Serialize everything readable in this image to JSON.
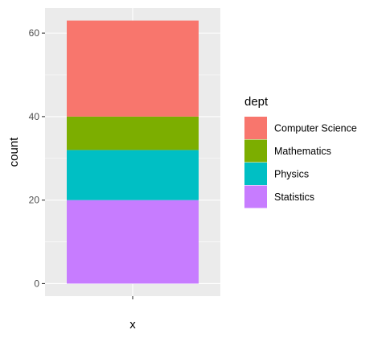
{
  "chart_data": {
    "type": "bar",
    "stacked": true,
    "categories": [
      ""
    ],
    "xlabel": "x",
    "ylabel": "count",
    "ylim": [
      -3,
      66
    ],
    "yticks": [
      0,
      20,
      40,
      60
    ],
    "grid": true,
    "legend_position": "right",
    "legend_title": "dept",
    "series": [
      {
        "name": "Computer Science",
        "values": [
          23
        ],
        "color": "#F8766D"
      },
      {
        "name": "Mathematics",
        "values": [
          8
        ],
        "color": "#7CAE00"
      },
      {
        "name": "Physics",
        "values": [
          12
        ],
        "color": "#00BFC4"
      },
      {
        "name": "Statistics",
        "values": [
          20
        ],
        "color": "#C77CFF"
      }
    ],
    "stack_order_bottom_to_top": [
      "Statistics",
      "Physics",
      "Mathematics",
      "Computer Science"
    ],
    "colors": {
      "panel": "#EBEBEB",
      "grid_major": "#FFFFFF",
      "axis_text": "#4D4D4D",
      "title_text": "#000000"
    }
  }
}
